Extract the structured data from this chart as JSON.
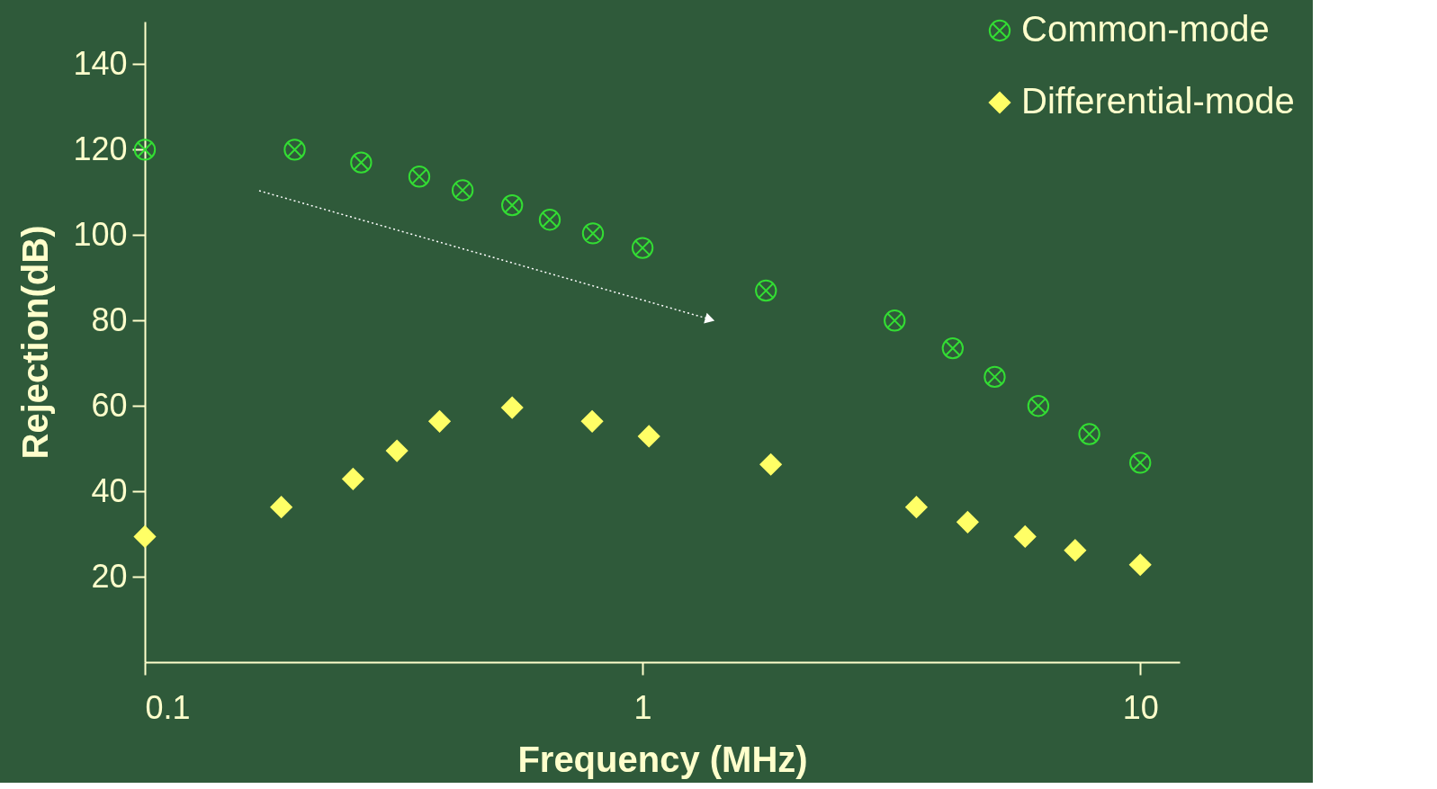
{
  "chart_data": {
    "type": "scatter",
    "xlabel": "Frequency (MHz)",
    "ylabel": "Rejection(dB)",
    "log": "x",
    "xlim": [
      0.1,
      12
    ],
    "xticks": [
      0.1,
      1,
      10
    ],
    "ylim": [
      0,
      150
    ],
    "yticks": [
      20,
      40,
      60,
      80,
      100,
      120,
      140
    ],
    "grid": false,
    "legend": "top right",
    "series": [
      {
        "name": "Common-mode",
        "color": "#33dd33",
        "marker": "circle",
        "x": [
          0.1,
          0.2,
          0.272,
          0.356,
          0.435,
          0.547,
          0.651,
          0.795,
          1.0,
          1.77,
          3.21,
          4.2,
          5.1,
          6.24,
          7.9,
          10.0
        ],
        "values": [
          120,
          120,
          117,
          113.7,
          110.5,
          107,
          103.6,
          100.4,
          97,
          87,
          80,
          73.5,
          66.8,
          60,
          53.4,
          46.7
        ]
      },
      {
        "name": "Differential-mode",
        "color": "#ffff66",
        "marker": "diamond",
        "x": [
          0.1,
          0.188,
          0.262,
          0.321,
          0.391,
          0.547,
          0.792,
          1.03,
          1.81,
          3.55,
          4.5,
          5.87,
          7.4,
          10.0
        ],
        "values": [
          29.4,
          36.3,
          42.9,
          49.5,
          56.4,
          59.6,
          56.4,
          52.9,
          46.3,
          36.3,
          32.8,
          29.4,
          26.2,
          22.8
        ]
      }
    ]
  }
}
